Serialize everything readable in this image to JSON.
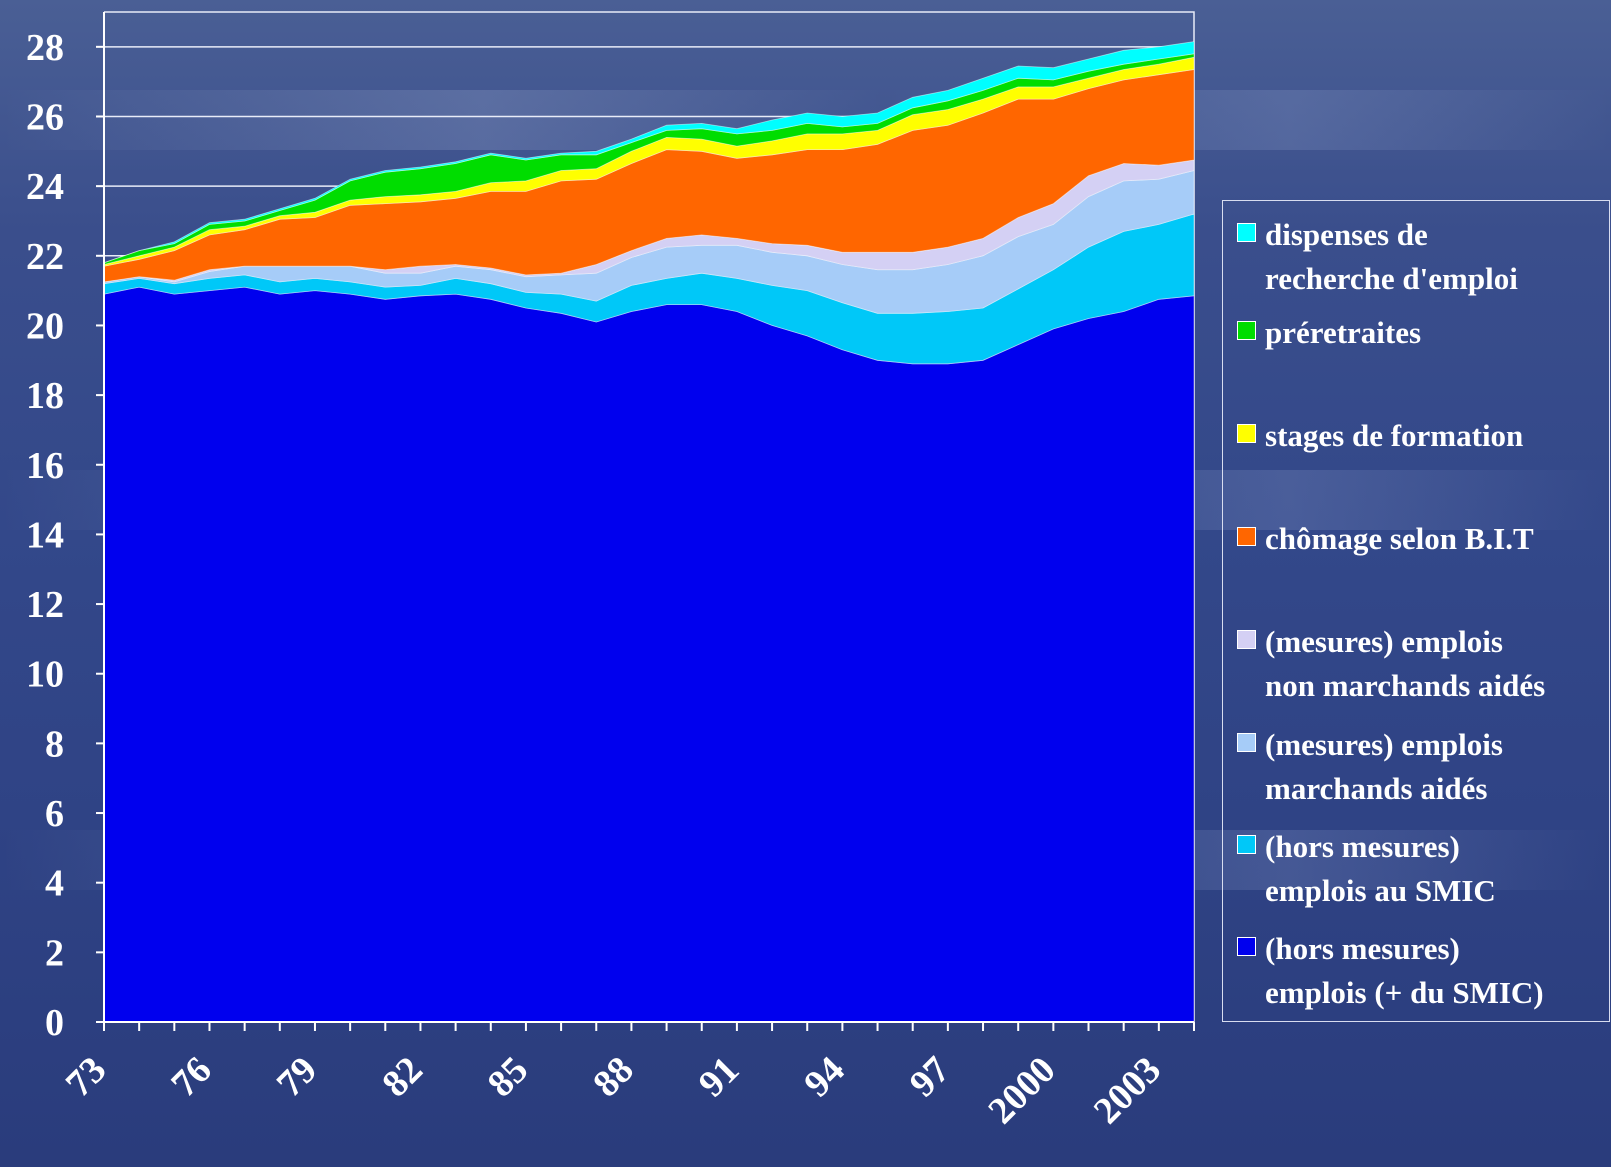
{
  "chart_data": {
    "type": "area",
    "stacked": true,
    "x": [
      1973,
      1974,
      1975,
      1976,
      1977,
      1978,
      1979,
      1980,
      1981,
      1982,
      1983,
      1984,
      1985,
      1986,
      1987,
      1988,
      1989,
      1990,
      1991,
      1992,
      1993,
      1994,
      1995,
      1996,
      1997,
      1998,
      1999,
      2000,
      2001,
      2002,
      2003,
      2004
    ],
    "x_tick_labels": [
      "73",
      "76",
      "79",
      "82",
      "85",
      "88",
      "91",
      "94",
      "97",
      "2000",
      "2003"
    ],
    "x_tick_values": [
      1973,
      1976,
      1979,
      1982,
      1985,
      1988,
      1991,
      1994,
      1997,
      2000,
      2003
    ],
    "y_ticks": [
      0,
      2,
      4,
      6,
      8,
      10,
      12,
      14,
      16,
      18,
      20,
      22,
      24,
      26,
      28
    ],
    "ylim": [
      0,
      29
    ],
    "series": [
      {
        "name": "(hors mesures) emplois (+ du SMIC)",
        "color": "#0000ee",
        "values": [
          20.9,
          21.1,
          20.9,
          21.0,
          21.1,
          20.9,
          21.0,
          20.9,
          20.75,
          20.85,
          20.9,
          20.75,
          20.5,
          20.35,
          20.1,
          20.4,
          20.6,
          20.6,
          20.4,
          20.0,
          19.7,
          19.3,
          19.0,
          18.9,
          18.9,
          19.0,
          19.45,
          19.9,
          20.2,
          20.4,
          20.75,
          20.85
        ]
      },
      {
        "name": "(hors mesures) emplois au SMIC",
        "color": "#00c8f8",
        "values": [
          0.3,
          0.25,
          0.3,
          0.35,
          0.35,
          0.35,
          0.35,
          0.35,
          0.35,
          0.3,
          0.45,
          0.45,
          0.45,
          0.55,
          0.6,
          0.75,
          0.75,
          0.9,
          0.95,
          1.15,
          1.3,
          1.35,
          1.35,
          1.45,
          1.5,
          1.5,
          1.6,
          1.7,
          2.05,
          2.3,
          2.15,
          2.35
        ]
      },
      {
        "name": "(mesures) emplois marchands aidés",
        "color": "#a6ccf8",
        "values": [
          0.05,
          0.05,
          0.05,
          0.2,
          0.25,
          0.45,
          0.35,
          0.45,
          0.4,
          0.35,
          0.35,
          0.4,
          0.45,
          0.55,
          0.8,
          0.8,
          0.9,
          0.8,
          0.95,
          0.95,
          1.0,
          1.1,
          1.25,
          1.25,
          1.35,
          1.5,
          1.5,
          1.3,
          1.45,
          1.45,
          1.3,
          1.25
        ]
      },
      {
        "name": "(mesures) emplois non marchands aidés",
        "color": "#d4d0f4",
        "values": [
          0.0,
          0.0,
          0.05,
          0.05,
          0.0,
          0.0,
          0.0,
          0.0,
          0.1,
          0.2,
          0.05,
          0.05,
          0.05,
          0.05,
          0.25,
          0.2,
          0.25,
          0.3,
          0.2,
          0.25,
          0.3,
          0.35,
          0.5,
          0.5,
          0.5,
          0.5,
          0.55,
          0.6,
          0.6,
          0.5,
          0.4,
          0.3
        ]
      },
      {
        "name": "chômage selon B.I.T",
        "color": "#ff6600",
        "values": [
          0.45,
          0.5,
          0.85,
          1.0,
          1.05,
          1.35,
          1.4,
          1.75,
          1.9,
          1.85,
          1.9,
          2.2,
          2.4,
          2.65,
          2.45,
          2.5,
          2.55,
          2.4,
          2.3,
          2.55,
          2.75,
          2.95,
          3.1,
          3.5,
          3.5,
          3.6,
          3.4,
          3.0,
          2.5,
          2.4,
          2.6,
          2.6
        ]
      },
      {
        "name": "stages de formation",
        "color": "#ffff00",
        "values": [
          0.05,
          0.1,
          0.1,
          0.15,
          0.1,
          0.1,
          0.15,
          0.15,
          0.2,
          0.2,
          0.2,
          0.25,
          0.3,
          0.3,
          0.3,
          0.35,
          0.35,
          0.35,
          0.35,
          0.4,
          0.45,
          0.45,
          0.4,
          0.45,
          0.45,
          0.4,
          0.35,
          0.35,
          0.3,
          0.3,
          0.3,
          0.35
        ]
      },
      {
        "name": "préretraites",
        "color": "#00dd00",
        "values": [
          0.05,
          0.15,
          0.1,
          0.15,
          0.15,
          0.15,
          0.35,
          0.55,
          0.7,
          0.75,
          0.8,
          0.8,
          0.6,
          0.45,
          0.4,
          0.25,
          0.2,
          0.3,
          0.35,
          0.3,
          0.3,
          0.2,
          0.2,
          0.2,
          0.25,
          0.25,
          0.25,
          0.2,
          0.2,
          0.15,
          0.15,
          0.1
        ]
      },
      {
        "name": "dispenses de recherche d'emploi",
        "color": "#00ffff",
        "values": [
          0.0,
          0.0,
          0.05,
          0.05,
          0.05,
          0.05,
          0.05,
          0.05,
          0.05,
          0.05,
          0.05,
          0.05,
          0.05,
          0.05,
          0.1,
          0.1,
          0.15,
          0.15,
          0.15,
          0.3,
          0.3,
          0.3,
          0.3,
          0.3,
          0.3,
          0.35,
          0.35,
          0.35,
          0.35,
          0.4,
          0.35,
          0.35
        ]
      }
    ],
    "legend": {
      "placement": "right",
      "entries": [
        {
          "label": "dispenses de\nrecherche d'emploi",
          "color": "#00ffff"
        },
        {
          "label": "préretraites",
          "color": "#00dd00"
        },
        {
          "label": "stages de formation",
          "color": "#ffff00"
        },
        {
          "label": " chômage selon B.I.T",
          "color": "#ff6600"
        },
        {
          "label": "(mesures) emplois\nnon marchands aidés",
          "color": "#d4d0f4"
        },
        {
          "label": "(mesures) emplois\nmarchands aidés",
          "color": "#a6ccf8"
        },
        {
          "label": "(hors mesures)\nemplois au SMIC",
          "color": "#00c8f8"
        },
        {
          "label": "(hors mesures)\nemplois (+ du SMIC)",
          "color": "#0000ee"
        }
      ]
    },
    "grid": "horizontal"
  }
}
